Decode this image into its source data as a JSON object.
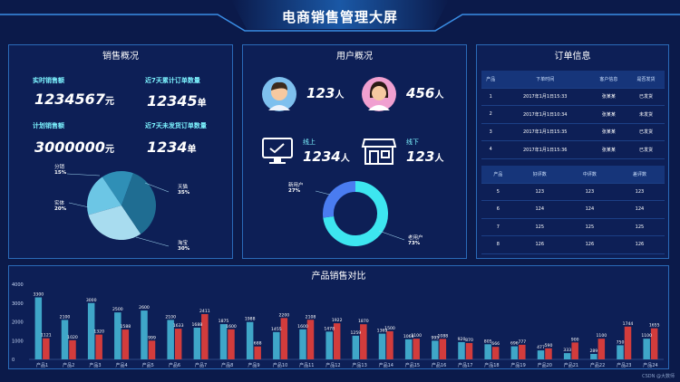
{
  "title": "电商销售管理大屏",
  "colors": {
    "bg": "#0b1a4a",
    "cyan": "#7cf3ff",
    "bar_blue": "#3fa6c8",
    "bar_red": "#d23c3c"
  },
  "sales": {
    "title": "销售概况",
    "realtime_label": "实时销售额",
    "realtime_value": "1234567",
    "realtime_unit": "元",
    "plan_label": "计划销售额",
    "plan_value": "3000000",
    "plan_unit": "元",
    "orders7_label": "近7天累计订单数量",
    "orders7_value": "12345",
    "orders7_unit": "单",
    "unshipped_label": "近7天未发货订单数量",
    "unshipped_value": "1234",
    "unshipped_unit": "单",
    "pie": [
      {
        "name": "分销",
        "pct": 15,
        "pct_label": "15%",
        "color": "#2f8fb6"
      },
      {
        "name": "实体",
        "pct": 20,
        "pct_label": "20%",
        "color": "#6cc6e5"
      },
      {
        "name": "淘宝",
        "pct": 30,
        "pct_label": "30%",
        "color": "#a8dcef"
      },
      {
        "name": "天猫",
        "pct": 35,
        "pct_label": "35%",
        "color": "#1f6d92"
      }
    ]
  },
  "users": {
    "title": "用户概况",
    "male_value": "123",
    "female_value": "456",
    "unit": "人",
    "online_label": "线上",
    "online_value": "1234",
    "offline_label": "线下",
    "offline_value": "123",
    "donut": [
      {
        "name": "新用户",
        "pct": 27,
        "pct_label": "27%",
        "color": "#4a7cf0"
      },
      {
        "name": "老用户",
        "pct": 73,
        "pct_label": "73%",
        "color": "#3de6f0"
      }
    ]
  },
  "orders": {
    "title": "订单信息",
    "headers": [
      "产品",
      "下单时间",
      "客户信息",
      "是否发货"
    ],
    "rows": [
      [
        "1",
        "2017年1月1日15:33",
        "张某某",
        "已发货"
      ],
      [
        "2",
        "2017年1月1日10:34",
        "张某某",
        "未发货"
      ],
      [
        "3",
        "2017年1月1日15:35",
        "张某某",
        "已发货"
      ],
      [
        "4",
        "2017年1月1日15:36",
        "张某某",
        "已发货"
      ]
    ],
    "review_headers": [
      "产品",
      "好评数",
      "中评数",
      "差评数"
    ],
    "review_rows": [
      [
        "5",
        "123",
        "123",
        "123"
      ],
      [
        "6",
        "124",
        "124",
        "124"
      ],
      [
        "7",
        "125",
        "125",
        "125"
      ],
      [
        "8",
        "126",
        "126",
        "126"
      ]
    ]
  },
  "bar": {
    "title": "产品销售对比",
    "yticks": [
      "4000",
      "3000",
      "2000",
      "1000",
      "0"
    ],
    "categories": [
      "产品1",
      "产品2",
      "产品3",
      "产品4",
      "产品5",
      "产品6",
      "产品7",
      "产品8",
      "产品9",
      "产品10",
      "产品11",
      "产品12",
      "产品13",
      "产品14",
      "产品15",
      "产品16",
      "产品17",
      "产品18",
      "产品19",
      "产品20",
      "产品21",
      "产品22",
      "产品23",
      "产品24"
    ],
    "series_a": [
      3300,
      2100,
      3000,
      2500,
      2600,
      2100,
      1688,
      1875,
      1988,
      1455,
      1600,
      1478,
      1259,
      1369,
      1068,
      995,
      920,
      805,
      696,
      477,
      333,
      289,
      750,
      1100
    ],
    "series_b": [
      1121,
      1020,
      1320,
      1588,
      999,
      1633,
      2411,
      1600,
      688,
      2200,
      2108,
      1922,
      1870,
      1500,
      1100,
      1088,
      870,
      666,
      777,
      590,
      900,
      1100,
      1744,
      1655
    ]
  },
  "watermark": "CSDN @大数师"
}
